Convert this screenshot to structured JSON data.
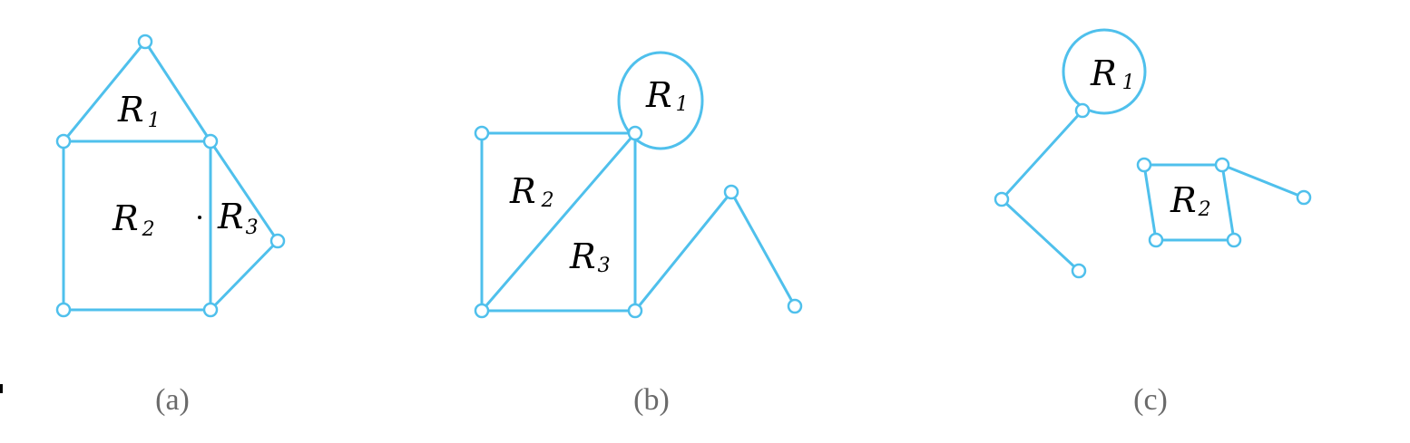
{
  "colors": {
    "edge": "#4fc0ec",
    "label": "#000000",
    "caption": "#6a6a6a",
    "background": "#ffffff"
  },
  "subfigures": [
    {
      "caption": "(a)",
      "regions": [
        {
          "letter": "R",
          "sub": "1"
        },
        {
          "letter": "R",
          "sub": "2"
        },
        {
          "letter": "R",
          "sub": "3"
        }
      ]
    },
    {
      "caption": "(b)",
      "regions": [
        {
          "letter": "R",
          "sub": "1"
        },
        {
          "letter": "R",
          "sub": "2"
        },
        {
          "letter": "R",
          "sub": "3"
        }
      ]
    },
    {
      "caption": "(c)",
      "regions": [
        {
          "letter": "R",
          "sub": "1"
        },
        {
          "letter": "R",
          "sub": "2"
        }
      ]
    }
  ]
}
